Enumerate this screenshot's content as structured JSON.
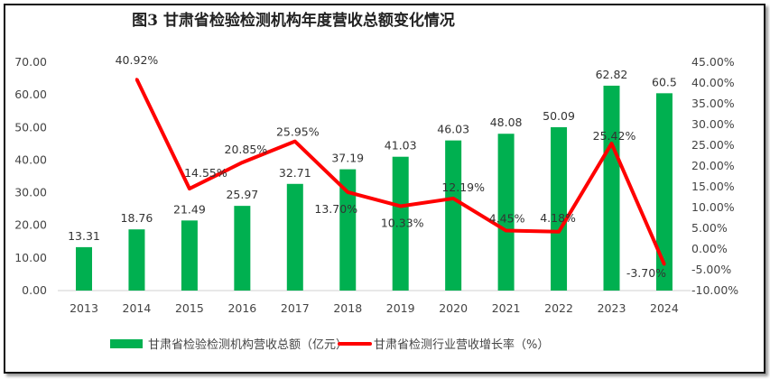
{
  "chart_data": {
    "type": "bar+line",
    "title": "图3 甘肃省检验检测机构年度营收总额变化情况",
    "categories": [
      "2013",
      "2014",
      "2015",
      "2016",
      "2017",
      "2018",
      "2019",
      "2020",
      "2021",
      "2022",
      "2023",
      "2024"
    ],
    "series": [
      {
        "name": "甘肃省检验检测机构营收总额（亿元）",
        "type": "bar",
        "axis": "left",
        "color": "#00b050",
        "values": [
          13.31,
          18.76,
          21.49,
          25.97,
          32.71,
          37.19,
          41.03,
          46.03,
          48.08,
          50.09,
          62.82,
          60.5
        ],
        "labels": [
          "13.31",
          "18.76",
          "21.49",
          "25.97",
          "32.71",
          "37.19",
          "41.03",
          "46.03",
          "48.08",
          "50.09",
          "62.82",
          "60.5"
        ]
      },
      {
        "name": "甘肃省检测行业营收增长率（%）",
        "type": "line",
        "axis": "right",
        "color": "#ff0000",
        "values": [
          null,
          40.92,
          14.55,
          20.85,
          25.95,
          13.7,
          10.33,
          12.19,
          4.45,
          4.18,
          25.42,
          -3.7
        ],
        "labels": [
          null,
          "40.92%",
          "14.55%",
          "20.85%",
          "25.95%",
          "13.70%",
          "10.33%",
          "12.19%",
          "4.45%",
          "4.18%",
          "25.42%",
          "-3.70%"
        ]
      }
    ],
    "yleft": {
      "ylim": [
        0,
        70
      ],
      "ticks": [
        "0.00",
        "10.00",
        "20.00",
        "30.00",
        "40.00",
        "50.00",
        "60.00",
        "70.00"
      ]
    },
    "yright": {
      "ylim": [
        -10,
        45
      ],
      "ticks": [
        "-10.00%",
        "-5.00%",
        "0.00%",
        "5.00%",
        "10.00%",
        "15.00%",
        "20.00%",
        "25.00%",
        "30.00%",
        "35.00%",
        "40.00%",
        "45.00%"
      ]
    },
    "legend": "bottom",
    "grid": false
  }
}
